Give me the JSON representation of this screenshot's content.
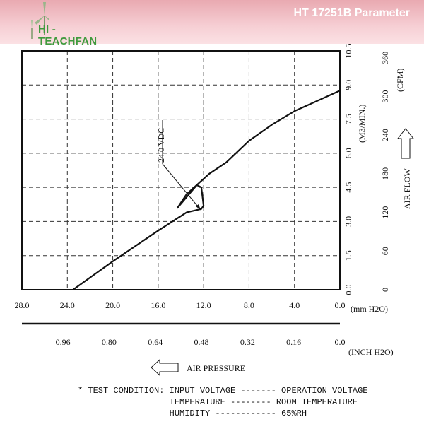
{
  "header": {
    "logo_text": "HI - TEACHFAN",
    "title": "HT 17251B Parameter"
  },
  "chart_data": {
    "type": "line",
    "xlabel": "AIR PRESSURE",
    "xlabel_units": [
      "(mm H2O)",
      "(INCH H2O)"
    ],
    "x_ticks_mm": [
      "28.0",
      "24.0",
      "20.0",
      "16.0",
      "12.0",
      "8.0",
      "4.0",
      "0.0"
    ],
    "x_ticks_inch": [
      "0.96",
      "0.80",
      "0.64",
      "0.48",
      "0.32",
      "0.16",
      "0.0"
    ],
    "xlim": [
      28,
      0
    ],
    "ylabel": "AIR FLOW",
    "ylabel_units": [
      "(M3/MIN.)",
      "(CFM)"
    ],
    "y_ticks_m3": [
      "0.0",
      "1.5",
      "3.0",
      "4.5",
      "6.0",
      "7.5",
      "9.0",
      "10.5"
    ],
    "y_ticks_cfm": [
      "0",
      "60",
      "120",
      "180",
      "240",
      "300",
      "360"
    ],
    "ylim": [
      0,
      10.5
    ],
    "series": [
      {
        "name": "24.0 VDC",
        "x": [
          23.5,
          20,
          16,
          13.5,
          12.2,
          12.0,
          12.2,
          12.6,
          14.3,
          13.5,
          11.5,
          10.0,
          8.0,
          6.0,
          4.0,
          2.0,
          0.0
        ],
        "y": [
          0.0,
          1.25,
          2.6,
          3.4,
          3.55,
          3.7,
          4.5,
          4.6,
          3.6,
          4.2,
          5.1,
          5.6,
          6.55,
          7.25,
          7.85,
          8.3,
          8.75
        ]
      }
    ],
    "annotation": "24.0 VDC",
    "grid": true
  },
  "conditions": {
    "lines": [
      "* TEST CONDITION: INPUT VOLTAGE ------- OPERATION VOLTAGE",
      "                  TEMPERATURE -------- ROOM TEMPERATURE",
      "                  HUMIDITY ------------ 65%RH"
    ]
  }
}
